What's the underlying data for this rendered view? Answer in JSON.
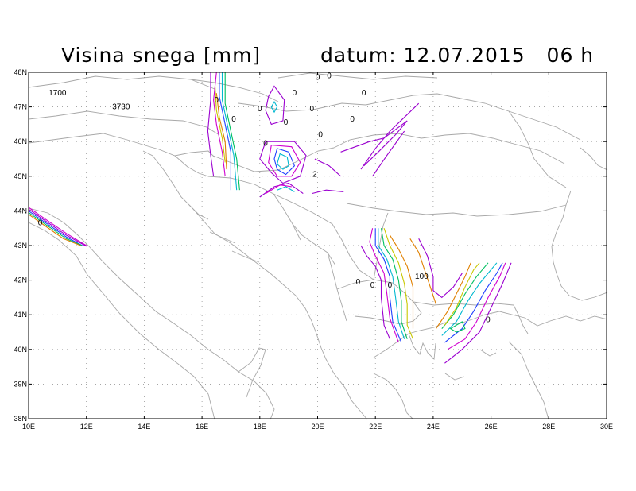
{
  "title": "Visina snega [mm]",
  "datum": "datum: 12.07.2015   06 h",
  "map": {
    "lon_range": [
      10,
      30
    ],
    "lat_range": [
      38,
      48
    ],
    "x_ticks": [
      "10E",
      "12E",
      "14E",
      "16E",
      "18E",
      "20E",
      "22E",
      "24E",
      "26E",
      "28E",
      "30E"
    ],
    "y_ticks": [
      "38N",
      "39N",
      "40N",
      "41N",
      "42N",
      "43N",
      "44N",
      "45N",
      "46N",
      "47N",
      "48N"
    ],
    "grid": "dotted"
  },
  "labels": [
    {
      "text": "1700",
      "lon": 11.0,
      "lat": 47.4
    },
    {
      "text": "3730",
      "lon": 13.2,
      "lat": 47.0
    },
    {
      "text": "0",
      "lon": 20.0,
      "lat": 47.85
    },
    {
      "text": "0",
      "lon": 20.4,
      "lat": 47.9
    },
    {
      "text": "0",
      "lon": 21.6,
      "lat": 47.4
    },
    {
      "text": "0",
      "lon": 19.2,
      "lat": 47.4
    },
    {
      "text": "0",
      "lon": 16.5,
      "lat": 47.2
    },
    {
      "text": "0",
      "lon": 18.0,
      "lat": 46.95
    },
    {
      "text": "0",
      "lon": 19.8,
      "lat": 46.95
    },
    {
      "text": "0",
      "lon": 21.2,
      "lat": 46.65
    },
    {
      "text": "0",
      "lon": 17.1,
      "lat": 46.65
    },
    {
      "text": "0",
      "lon": 18.9,
      "lat": 46.55
    },
    {
      "text": "0",
      "lon": 20.1,
      "lat": 46.2
    },
    {
      "text": "0",
      "lon": 18.2,
      "lat": 45.95
    },
    {
      "text": "2",
      "lon": 19.9,
      "lat": 45.05
    },
    {
      "text": "0",
      "lon": 10.4,
      "lat": 43.65
    },
    {
      "text": "0",
      "lon": 21.4,
      "lat": 41.95
    },
    {
      "text": "0",
      "lon": 21.9,
      "lat": 41.85
    },
    {
      "text": "0",
      "lon": 22.5,
      "lat": 41.85
    },
    {
      "text": "100",
      "lon": 23.6,
      "lat": 42.1
    },
    {
      "text": "0",
      "lon": 25.9,
      "lat": 40.85
    }
  ],
  "colors": {
    "purple": "#9b00d0",
    "magenta": "#d000d0",
    "blue": "#2040ff",
    "cyan": "#00b8d0",
    "green": "#00c060",
    "yellow": "#c8c800",
    "orange": "#e08000",
    "coast": "#a8a8a8"
  }
}
